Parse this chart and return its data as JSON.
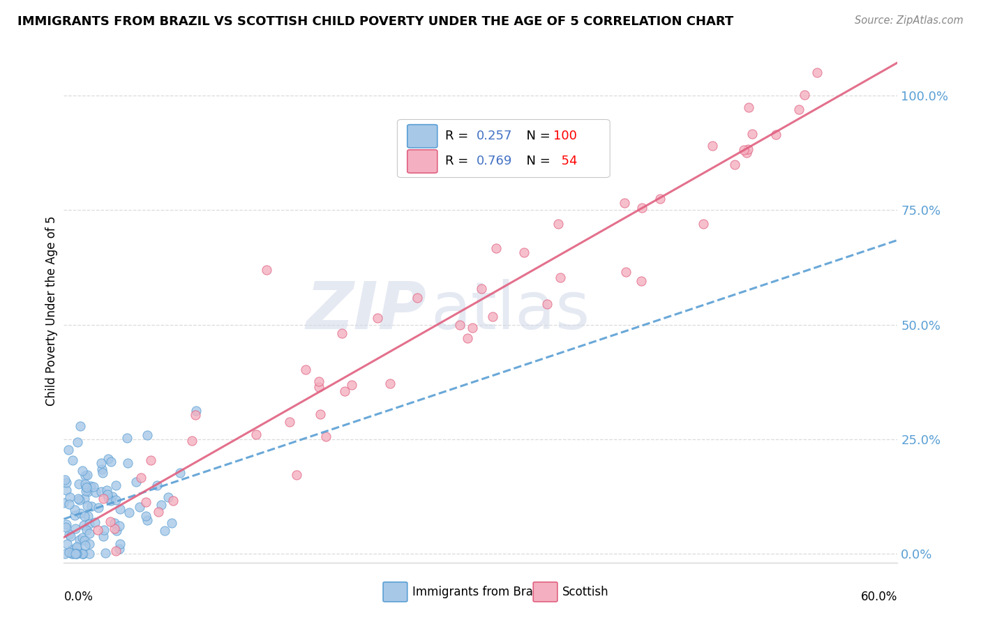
{
  "title": "IMMIGRANTS FROM BRAZIL VS SCOTTISH CHILD POVERTY UNDER THE AGE OF 5 CORRELATION CHART",
  "source": "Source: ZipAtlas.com",
  "ylabel": "Child Poverty Under the Age of 5",
  "xlim": [
    0.0,
    0.6
  ],
  "ylim": [
    -0.02,
    1.08
  ],
  "ytick_vals": [
    0.0,
    0.25,
    0.5,
    0.75,
    1.0
  ],
  "ytick_labels": [
    "0.0%",
    "25.0%",
    "50.0%",
    "75.0%",
    "100.0%"
  ],
  "series1_label": "Immigrants from Brazil",
  "series1_color": "#a8c8e8",
  "series1_edge_color": "#5a9fd4",
  "series1_R": 0.257,
  "series1_N": 100,
  "series1_line_color": "#5a9fd4",
  "series2_label": "Scottish",
  "series2_color": "#f4b0c0",
  "series2_edge_color": "#e06080",
  "series2_R": 0.769,
  "series2_N": 54,
  "series2_line_color": "#e06080",
  "legend_R_color": "#4472c4",
  "legend_N_color": "#ff0000",
  "ytick_color": "#5a9fd4",
  "watermark_zip": "ZIP",
  "watermark_atlas": "atlas",
  "background_color": "#ffffff",
  "grid_color": "#d8d8d8"
}
